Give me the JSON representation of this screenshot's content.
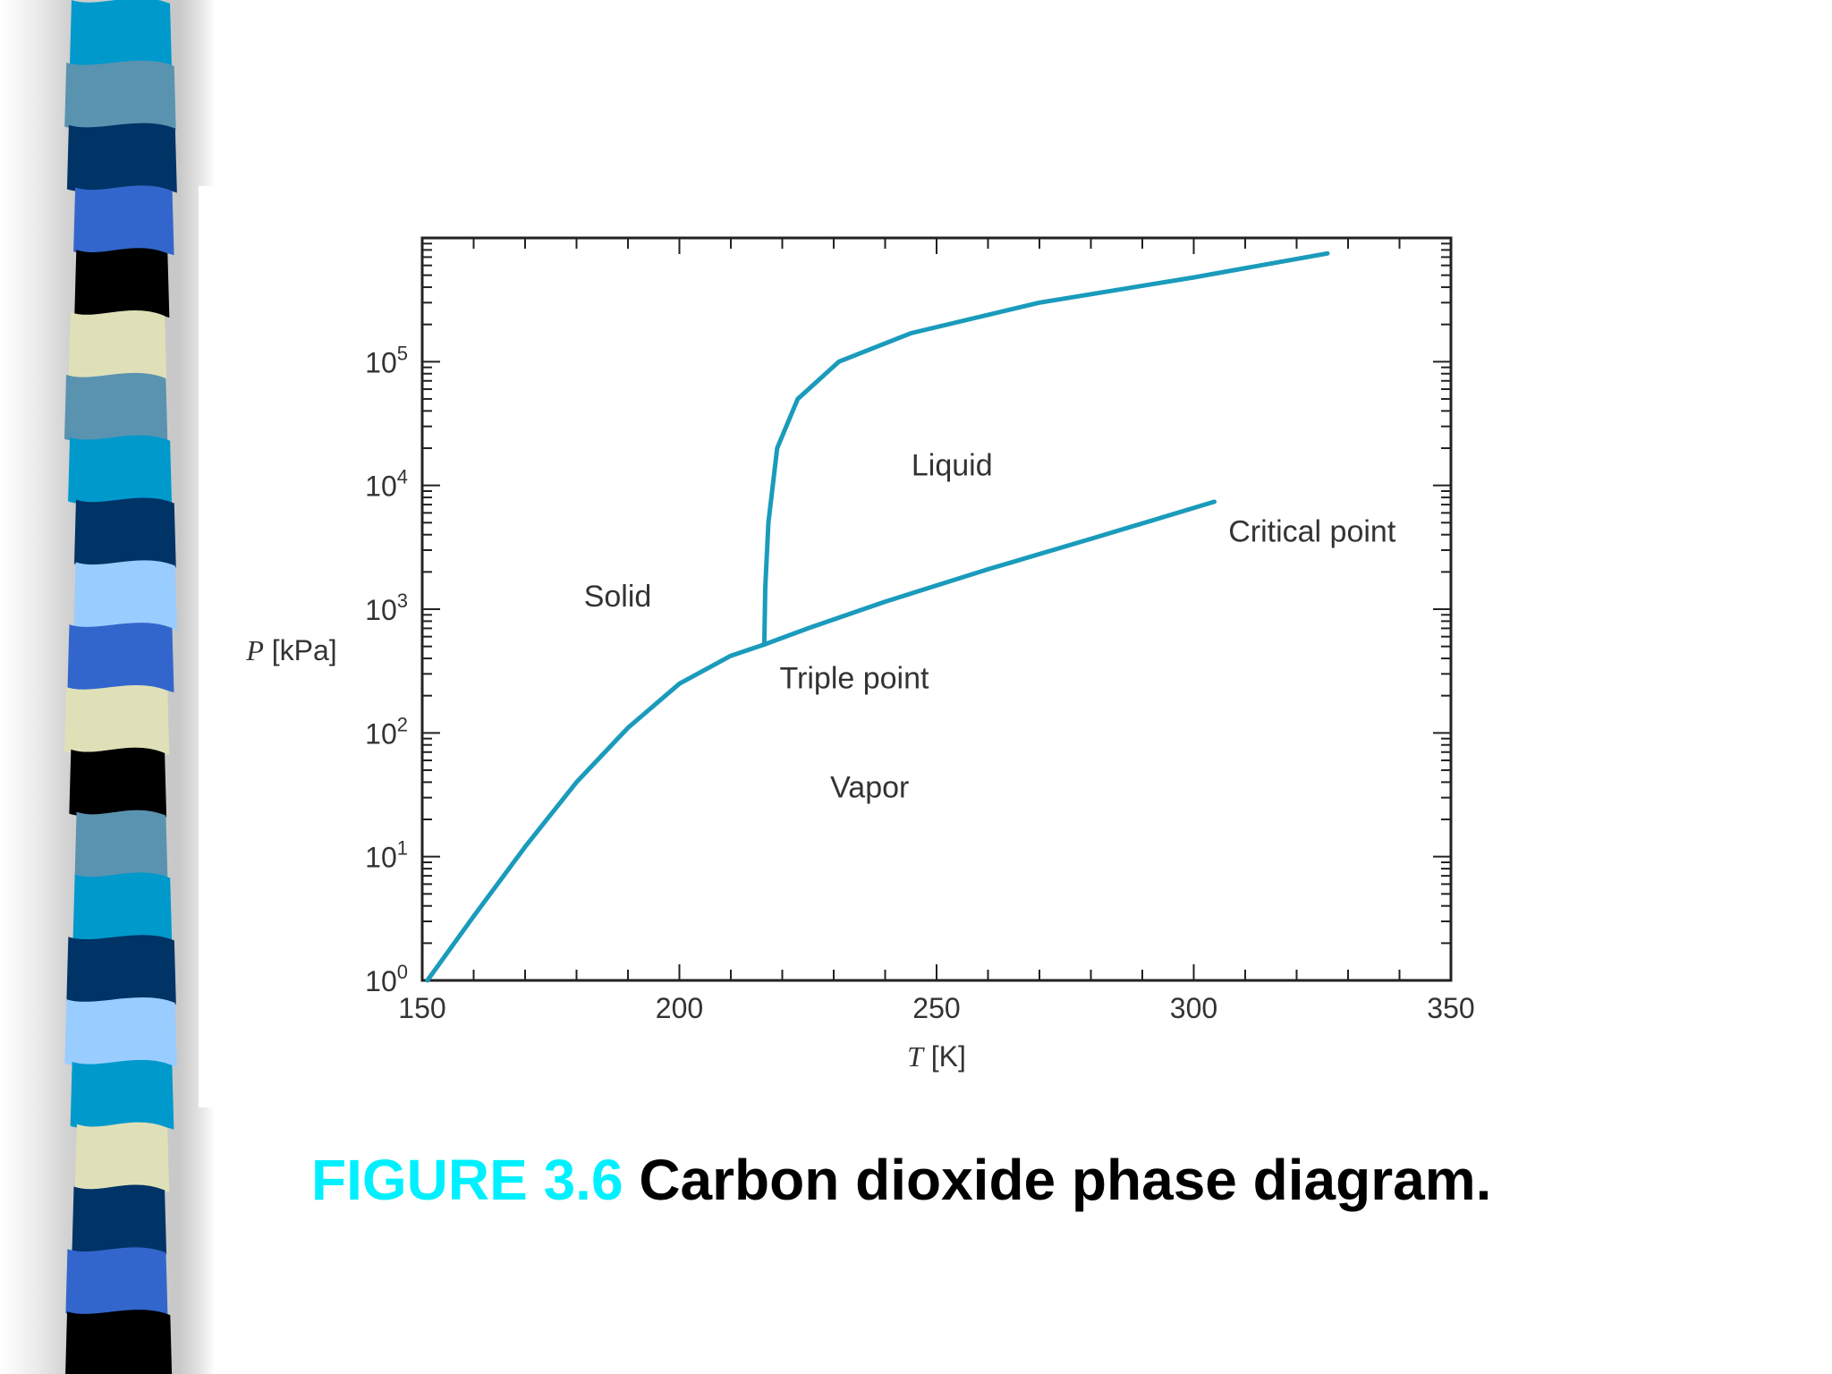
{
  "slide": {
    "caption_number": "FIGURE 3.6",
    "caption_text": "Carbon dioxide phase diagram.",
    "accent_color": "#00f0ff",
    "stripe_colors": [
      "#0099cc",
      "#5a93b0",
      "#003366",
      "#3366cc",
      "#000000",
      "#e0e0b8",
      "#5a93b0",
      "#0099cc",
      "#003366",
      "#99ccff",
      "#3366cc",
      "#e0e0b8",
      "#000000",
      "#5a93b0",
      "#0099cc",
      "#003366",
      "#99ccff",
      "#0099cc",
      "#e0e0b8",
      "#003366",
      "#3366cc",
      "#000000"
    ]
  },
  "chart_data": {
    "type": "line",
    "title": "",
    "xlabel": "T [K]",
    "ylabel": "P [kPa]",
    "xlim": [
      150,
      350
    ],
    "ylim": [
      1,
      1000000
    ],
    "y_scale": "log",
    "grid": false,
    "line_color": "#1a9bbc",
    "x_ticks": [
      150,
      200,
      250,
      300,
      350
    ],
    "x_tick_labels": [
      "150",
      "200",
      "250",
      "300",
      "350"
    ],
    "y_ticks": [
      1,
      10,
      100,
      1000,
      10000,
      100000
    ],
    "y_tick_bases": [
      "10",
      "10",
      "10",
      "10",
      "10",
      "10"
    ],
    "y_tick_exponents": [
      "0",
      "1",
      "2",
      "3",
      "4",
      "5"
    ],
    "series": [
      {
        "curve": "sublimation",
        "x": [
          151,
          160,
          170,
          180,
          190,
          200,
          210,
          216.5
        ],
        "y": [
          1,
          3.3,
          12,
          40,
          110,
          250,
          420,
          518
        ]
      },
      {
        "curve": "vaporization",
        "x": [
          216.5,
          225,
          240,
          260,
          280,
          304
        ],
        "y": [
          518,
          700,
          1150,
          2100,
          3700,
          7380
        ]
      },
      {
        "curve": "melting",
        "x": [
          216.5,
          216.7,
          217.3,
          219,
          223,
          231,
          245,
          270,
          300,
          326
        ],
        "y": [
          518,
          1500,
          5000,
          20000,
          50000,
          100000,
          170000,
          300000,
          480000,
          750000
        ]
      }
    ],
    "annotations": [
      {
        "text": "Solid",
        "x": 188,
        "y": 1050
      },
      {
        "text": "Liquid",
        "x": 253,
        "y": 12000
      },
      {
        "text": "Vapor",
        "x": 237,
        "y": 30
      },
      {
        "text": "Triple point",
        "x": 234,
        "y": 230
      },
      {
        "text": "Critical point",
        "x": 323,
        "y": 3500
      }
    ]
  }
}
